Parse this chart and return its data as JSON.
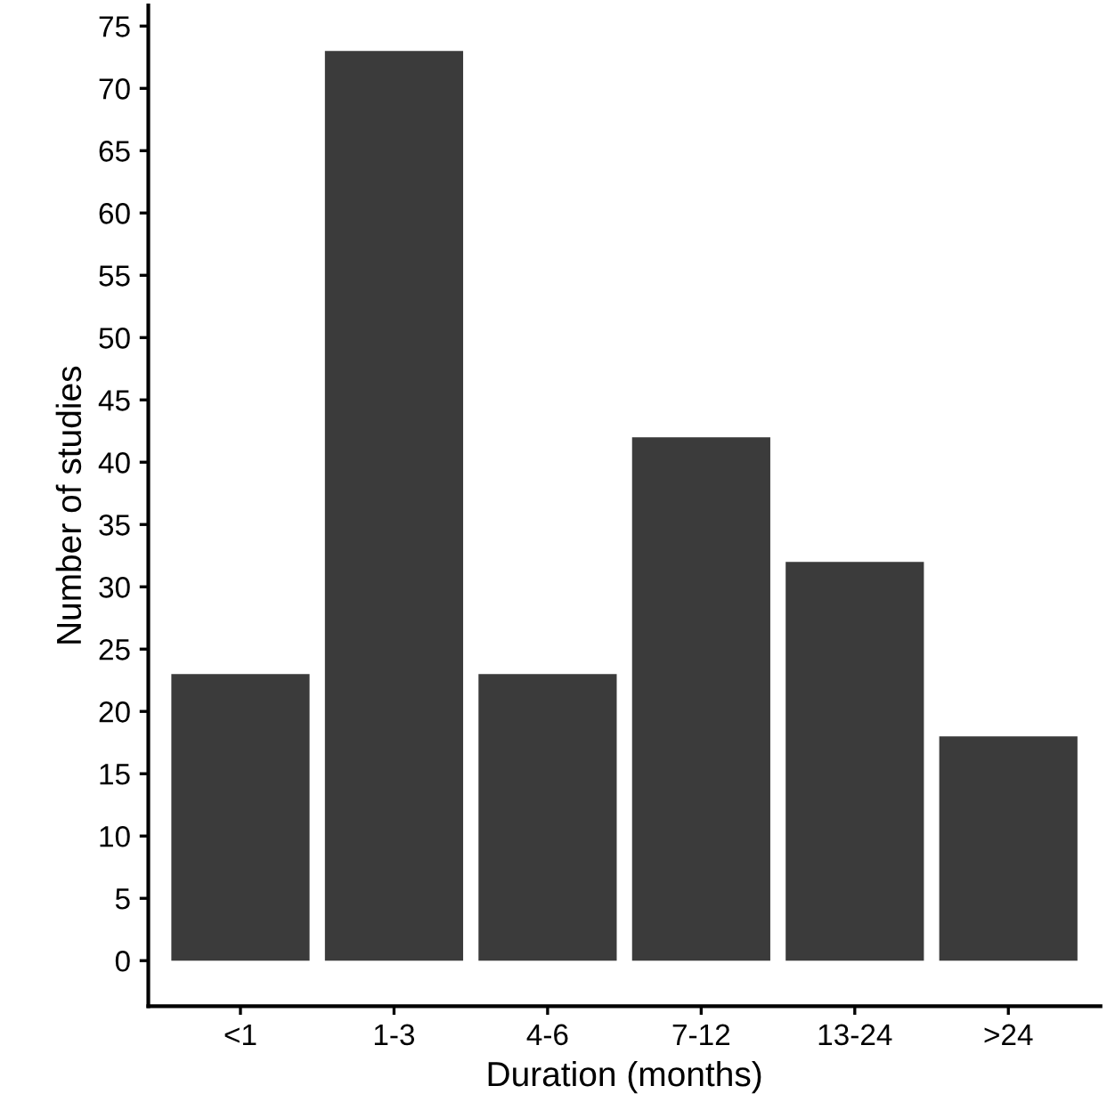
{
  "chart_data": {
    "type": "bar",
    "xlabel": "Duration (months)",
    "ylabel": "Number of studies",
    "categories": [
      "<1",
      "1-3",
      "4-6",
      "7-12",
      "13-24",
      ">24"
    ],
    "values": [
      23,
      73,
      23,
      42,
      32,
      18
    ],
    "color": "#3b3b3b",
    "ylim": [
      -3.65,
      76.65
    ],
    "yticks": [
      0,
      5,
      10,
      15,
      20,
      25,
      30,
      35,
      40,
      45,
      50,
      55,
      60,
      65,
      70,
      75
    ],
    "grid": false,
    "legend": false
  }
}
